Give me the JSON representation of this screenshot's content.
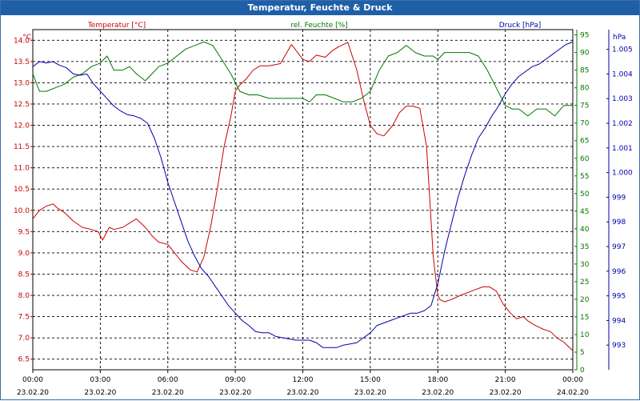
{
  "window": {
    "title": "Temperatur, Feuchte & Druck"
  },
  "colors": {
    "temperature": "#cc0000",
    "humidity": "#007700",
    "pressure": "#0000aa",
    "grid": "#000000",
    "titlebar": "#1e5fa8"
  },
  "chart_data": {
    "type": "line",
    "title": "Temperatur, Feuchte & Druck",
    "xlim": [
      0,
      24
    ],
    "x_tick_labels": [
      {
        "time": "00:00",
        "date": "23.02.20"
      },
      {
        "time": "03:00",
        "date": "23.02.20"
      },
      {
        "time": "06:00",
        "date": "23.02.20"
      },
      {
        "time": "09:00",
        "date": "23.02.20"
      },
      {
        "time": "12:00",
        "date": "23.02.20"
      },
      {
        "time": "15:00",
        "date": "23.02.20"
      },
      {
        "time": "18:00",
        "date": "23.02.20"
      },
      {
        "time": "21:00",
        "date": "23.02.20"
      },
      {
        "time": "00:00",
        "date": "24.02.20"
      }
    ],
    "axes": {
      "temperature": {
        "label": "Temperatur [°C]",
        "unit": "°C",
        "ylim": [
          6.25,
          14.25
        ],
        "ticks": [
          "6.5",
          "7.0",
          "7.5",
          "8.0",
          "8.5",
          "9.0",
          "9.5",
          "10.0",
          "10.5",
          "11.0",
          "11.5",
          "12.0",
          "12.5",
          "13.0",
          "13.5",
          "14.0"
        ]
      },
      "humidity": {
        "label": "rel. Feuchte [%]",
        "unit": "%",
        "ylim": [
          0,
          96.5
        ],
        "ticks": [
          "0",
          "5",
          "10",
          "15",
          "20",
          "25",
          "30",
          "35",
          "40",
          "45",
          "50",
          "55",
          "60",
          "65",
          "70",
          "75",
          "80",
          "85",
          "90",
          "95"
        ]
      },
      "pressure": {
        "label": "Druck [hPa]",
        "unit": "hPa",
        "ylim": [
          992.0,
          1005.8
        ],
        "ticks": [
          "993",
          "994",
          "995",
          "996",
          "997",
          "998",
          "999",
          "1.000",
          "1.001",
          "1.002",
          "1.003",
          "1.004",
          "1.005"
        ]
      }
    },
    "grid": true,
    "series": [
      {
        "name": "Temperatur [°C]",
        "axis": "temperature",
        "x": [
          0,
          0.3,
          0.6,
          0.9,
          1.1,
          1.4,
          1.8,
          2.2,
          2.6,
          2.9,
          3.1,
          3.4,
          3.6,
          4.0,
          4.3,
          4.6,
          5.0,
          5.3,
          5.6,
          6.0,
          6.3,
          6.6,
          7.0,
          7.3,
          7.6,
          7.9,
          8.2,
          8.5,
          8.8,
          9.0,
          9.2,
          9.5,
          9.8,
          10.1,
          10.5,
          11.0,
          11.5,
          12.0,
          12.3,
          12.6,
          13.0,
          13.3,
          13.6,
          14.0,
          14.4,
          14.7,
          15.0,
          15.3,
          15.6,
          16.0,
          16.3,
          16.6,
          16.9,
          17.2,
          17.5,
          17.8,
          18.0,
          18.1,
          18.3,
          18.6,
          19.0,
          19.5,
          20.0,
          20.3,
          20.6,
          20.9,
          21.2,
          21.5,
          21.8,
          22.0,
          22.3,
          22.7,
          23.0,
          23.3,
          23.6,
          24.0
        ],
        "y": [
          9.8,
          10.0,
          10.1,
          10.15,
          10.05,
          9.95,
          9.75,
          9.6,
          9.55,
          9.5,
          9.3,
          9.6,
          9.55,
          9.6,
          9.7,
          9.8,
          9.6,
          9.4,
          9.25,
          9.2,
          9.0,
          8.8,
          8.6,
          8.55,
          8.9,
          9.6,
          10.5,
          11.5,
          12.2,
          12.8,
          12.95,
          13.1,
          13.3,
          13.4,
          13.4,
          13.45,
          13.9,
          13.55,
          13.5,
          13.65,
          13.6,
          13.75,
          13.85,
          13.95,
          13.3,
          12.6,
          12.0,
          11.8,
          11.75,
          12.0,
          12.3,
          12.45,
          12.45,
          12.4,
          11.5,
          8.9,
          8.0,
          7.9,
          7.85,
          7.9,
          8.0,
          8.1,
          8.2,
          8.2,
          8.1,
          7.8,
          7.6,
          7.45,
          7.5,
          7.4,
          7.3,
          7.2,
          7.15,
          7.0,
          6.9,
          6.7
        ]
      },
      {
        "name": "rel. Feuchte [%]",
        "axis": "humidity",
        "x": [
          0,
          0.3,
          0.6,
          1.0,
          1.4,
          1.8,
          2.2,
          2.6,
          3.0,
          3.3,
          3.6,
          4.0,
          4.3,
          4.6,
          5.0,
          5.3,
          5.6,
          6.0,
          6.4,
          6.8,
          7.2,
          7.6,
          8.0,
          8.4,
          8.8,
          9.2,
          9.6,
          10.0,
          10.5,
          11.0,
          11.5,
          12.0,
          12.3,
          12.6,
          13.0,
          13.4,
          13.8,
          14.2,
          14.6,
          15.0,
          15.4,
          15.8,
          16.2,
          16.6,
          17.0,
          17.4,
          17.8,
          18.0,
          18.3,
          18.6,
          19.0,
          19.4,
          19.8,
          20.2,
          20.6,
          21.0,
          21.3,
          21.6,
          22.0,
          22.4,
          22.8,
          23.2,
          23.6,
          24.0
        ],
        "y": [
          84,
          79,
          79,
          80,
          81,
          83,
          84,
          86,
          87,
          89,
          85,
          85,
          86,
          84,
          82,
          84,
          86,
          87,
          89,
          91,
          92,
          93,
          92,
          88,
          84,
          79,
          78,
          78,
          77,
          77,
          77,
          77,
          76,
          78,
          78,
          77,
          76,
          76,
          77,
          79,
          85,
          89,
          90,
          92,
          90,
          89,
          89,
          88,
          90,
          90,
          90,
          90,
          89,
          85,
          80,
          75,
          74,
          74,
          72,
          74,
          74,
          72,
          75,
          75
        ]
      },
      {
        "name": "Druck [hPa]",
        "axis": "pressure",
        "x": [
          0,
          0.3,
          0.6,
          0.9,
          1.2,
          1.5,
          1.8,
          2.1,
          2.4,
          2.7,
          3.0,
          3.3,
          3.6,
          3.9,
          4.2,
          4.5,
          4.8,
          5.1,
          5.4,
          5.7,
          6.0,
          6.3,
          6.6,
          6.9,
          7.2,
          7.5,
          7.8,
          8.1,
          8.4,
          8.7,
          9.0,
          9.3,
          9.6,
          9.9,
          10.2,
          10.5,
          10.8,
          11.1,
          11.4,
          11.7,
          12.0,
          12.3,
          12.6,
          12.9,
          13.2,
          13.5,
          13.8,
          14.1,
          14.4,
          14.7,
          15.0,
          15.3,
          15.6,
          15.9,
          16.2,
          16.5,
          16.8,
          17.1,
          17.4,
          17.7,
          18.0,
          18.3,
          18.6,
          18.9,
          19.2,
          19.5,
          19.8,
          20.1,
          20.4,
          20.7,
          21.0,
          21.3,
          21.6,
          21.9,
          22.2,
          22.5,
          22.8,
          23.1,
          23.4,
          23.7,
          24.0
        ],
        "y": [
          1004.3,
          1004.5,
          1004.45,
          1004.5,
          1004.35,
          1004.25,
          1004.0,
          1003.95,
          1004.0,
          1003.6,
          1003.3,
          1003.0,
          1002.7,
          1002.5,
          1002.35,
          1002.3,
          1002.2,
          1002.0,
          1001.4,
          1000.6,
          999.6,
          998.8,
          998.0,
          997.2,
          996.6,
          996.1,
          995.8,
          995.4,
          995.0,
          994.6,
          994.3,
          994.0,
          993.8,
          993.55,
          993.5,
          993.5,
          993.35,
          993.3,
          993.25,
          993.2,
          993.2,
          993.2,
          993.1,
          992.9,
          992.9,
          992.9,
          993.0,
          993.05,
          993.1,
          993.3,
          993.5,
          993.8,
          993.9,
          994.0,
          994.1,
          994.2,
          994.3,
          994.3,
          994.4,
          994.6,
          995.5,
          996.8,
          997.9,
          999.0,
          999.9,
          1000.7,
          1001.4,
          1001.8,
          1002.3,
          1002.7,
          1003.2,
          1003.6,
          1003.9,
          1004.1,
          1004.3,
          1004.4,
          1004.6,
          1004.8,
          1005.0,
          1005.2,
          1005.3
        ]
      }
    ]
  }
}
